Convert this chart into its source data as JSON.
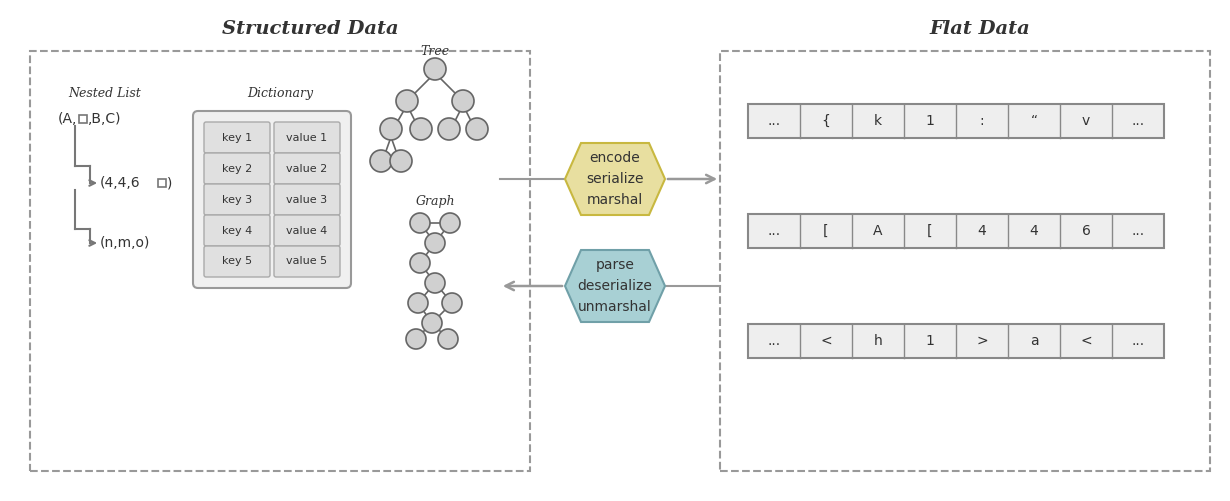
{
  "title_left": "Structured Data",
  "title_right": "Flat Data",
  "encode_box_color": "#e8dfa0",
  "encode_box_edge": "#c8b840",
  "parse_box_color": "#a8d0d4",
  "parse_box_edge": "#70a0a8",
  "encode_text": "encode\nserialize\nmarshal",
  "parse_text": "parse\ndeserialize\nunmarshal",
  "dict_rows": [
    [
      "key 1",
      "value 1"
    ],
    [
      "key 2",
      "value 2"
    ],
    [
      "key 3",
      "value 3"
    ],
    [
      "key 4",
      "value 4"
    ],
    [
      "key 5",
      "value 5"
    ]
  ],
  "flat_row1": [
    "...",
    "{",
    "k",
    "1",
    ":",
    "“",
    "v",
    "..."
  ],
  "flat_row2": [
    "...",
    "[",
    "A",
    "[",
    "4",
    "4",
    "6",
    "..."
  ],
  "flat_row3": [
    "...",
    "<",
    "h",
    "1",
    ">",
    "a",
    "<",
    "..."
  ],
  "node_color": "#d0d0d0",
  "node_edge": "#666666",
  "bg_color": "#ffffff",
  "text_color": "#333333",
  "dash_color": "#999999",
  "cell_bg": "#e0e0e0",
  "dict_outer_bg": "#f0f0f0",
  "flat_cell_bg": "#eeeeee",
  "arrow_color": "#999999",
  "line_color": "#777777"
}
